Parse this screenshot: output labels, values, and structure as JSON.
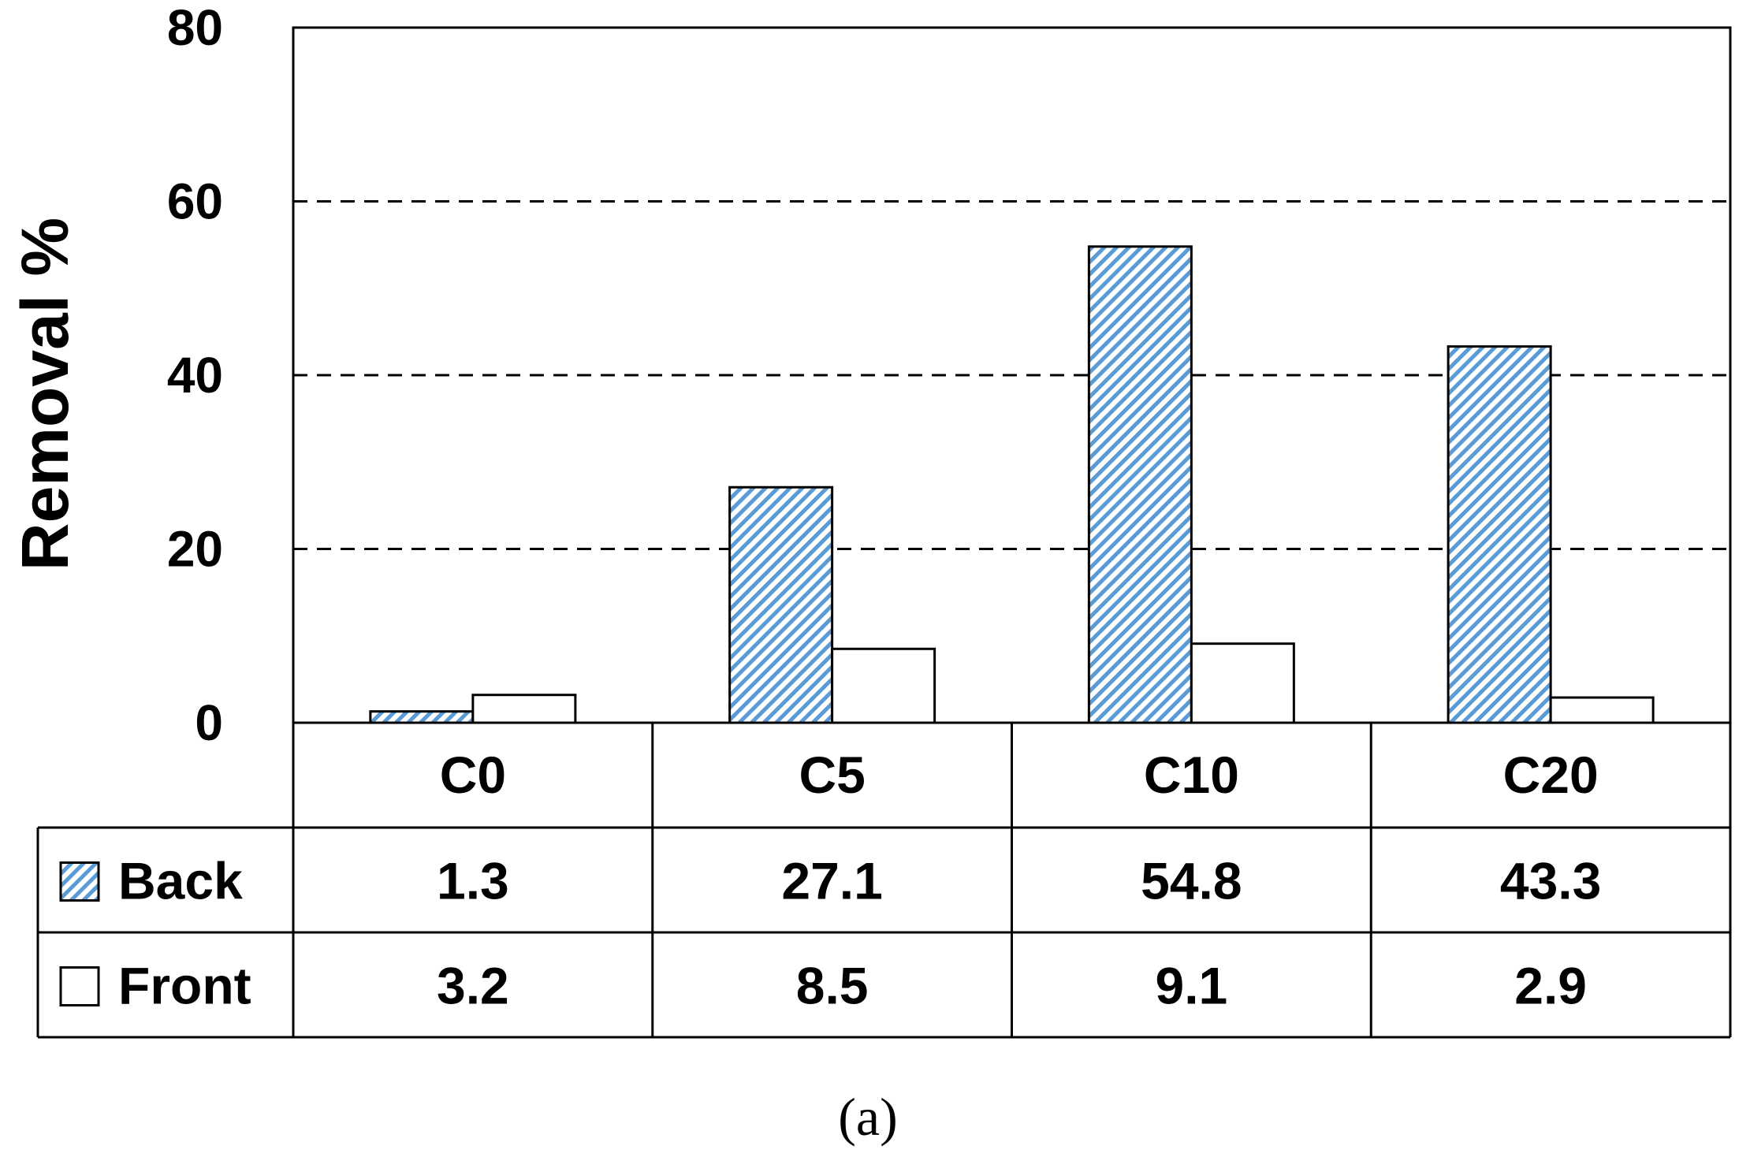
{
  "chart_data": {
    "type": "bar",
    "ylabel": "Removal %",
    "ylim": [
      0,
      80
    ],
    "yticks": [
      0,
      20,
      40,
      60,
      80
    ],
    "grid": "dashed horizontal at 20, 40, 60",
    "categories": [
      "C0",
      "C5",
      "C10",
      "C20"
    ],
    "series": [
      {
        "name": "Back",
        "values": [
          1.3,
          27.1,
          54.8,
          43.3
        ],
        "fill": "hatched light blue",
        "color": "#5B9BD5"
      },
      {
        "name": "Front",
        "values": [
          3.2,
          8.5,
          9.1,
          2.9
        ],
        "fill": "white",
        "color": "#FFFFFF"
      }
    ],
    "data_table": {
      "rows": [
        {
          "name": "Back",
          "cells": [
            "1.3",
            "27.1",
            "54.8",
            "43.3"
          ]
        },
        {
          "name": "Front",
          "cells": [
            "3.2",
            "8.5",
            "9.1",
            "2.9"
          ]
        }
      ]
    },
    "caption": "(a)"
  }
}
